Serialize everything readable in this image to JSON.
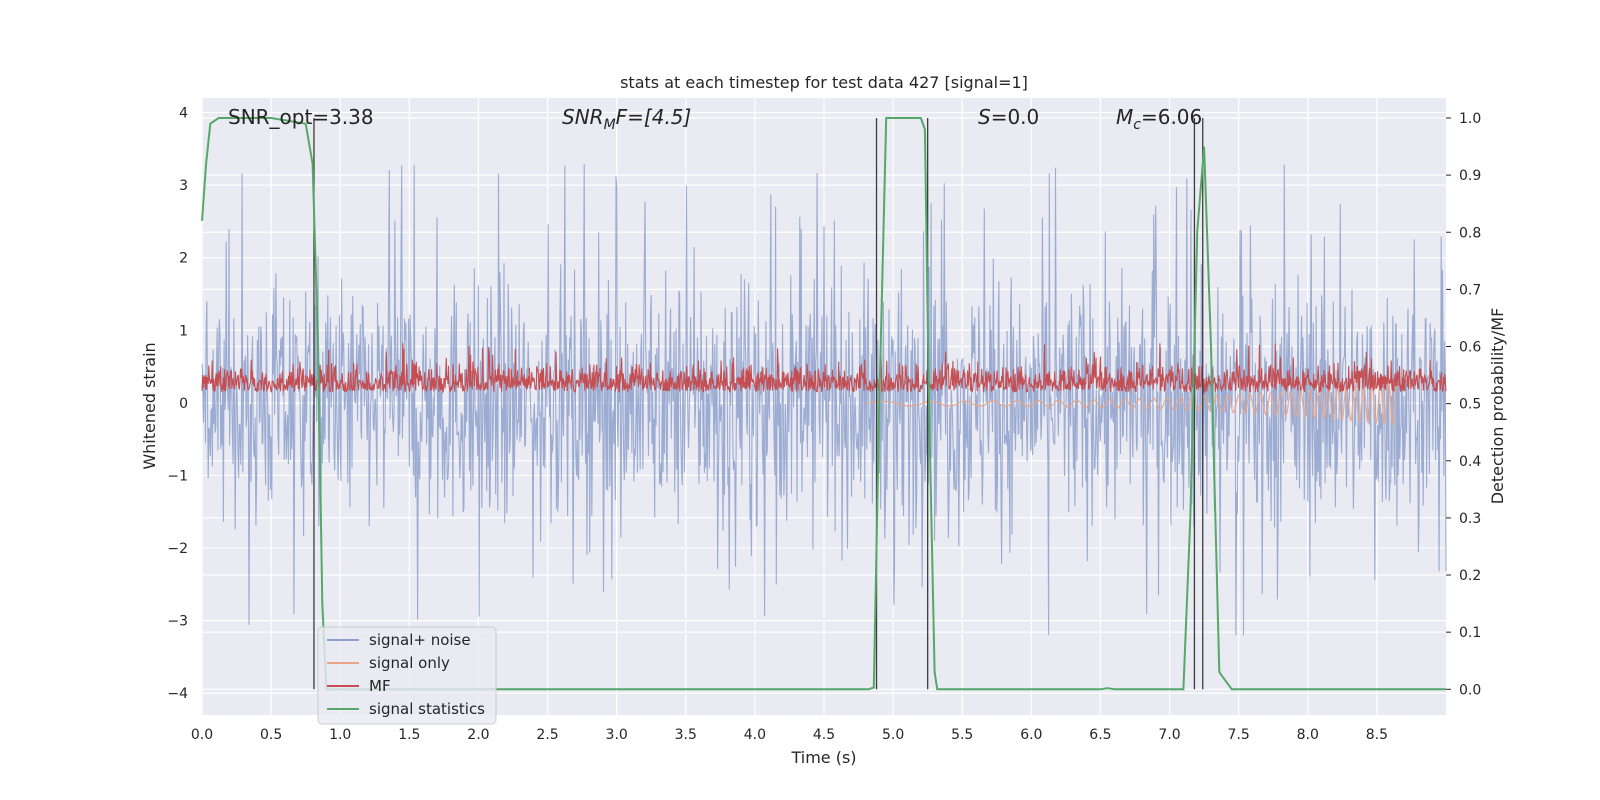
{
  "chart_data": {
    "type": "line",
    "title": "stats at each timestep for test data 427 [signal=1]",
    "xlabel": "Time (s)",
    "ylabel": "Whitened strain",
    "y2label": "Detection probability/MF",
    "xlim": [
      0,
      9.0
    ],
    "ylim": [
      -4.3,
      4.2
    ],
    "y2lim": [
      -0.045,
      1.035
    ],
    "xticks": [
      "0.0",
      "0.5",
      "1.0",
      "1.5",
      "2.0",
      "2.5",
      "3.0",
      "3.5",
      "4.0",
      "4.5",
      "5.0",
      "5.5",
      "6.0",
      "6.5",
      "7.0",
      "7.5",
      "8.0",
      "8.5"
    ],
    "xtick_values": [
      0,
      0.5,
      1.0,
      1.5,
      2.0,
      2.5,
      3.0,
      3.5,
      4.0,
      4.5,
      5.0,
      5.5,
      6.0,
      6.5,
      7.0,
      7.5,
      8.0,
      8.5
    ],
    "yticks": [
      "−4",
      "−3",
      "−2",
      "−1",
      "0",
      "1",
      "2",
      "3",
      "4"
    ],
    "ytick_values": [
      -4,
      -3,
      -2,
      -1,
      0,
      1,
      2,
      3,
      4
    ],
    "y2ticks": [
      "0.0",
      "0.1",
      "0.2",
      "0.3",
      "0.4",
      "0.5",
      "0.6",
      "0.7",
      "0.8",
      "0.9",
      "1.0"
    ],
    "y2tick_values": [
      0,
      0.1,
      0.2,
      0.3,
      0.4,
      0.5,
      0.6,
      0.7,
      0.8,
      0.9,
      1.0
    ],
    "grid": true,
    "legend_position": "lower-left",
    "annotations": {
      "snr_opt": "SNR_opt=3.38",
      "snr_mf_base": "SNR",
      "snr_mf_sub": "M",
      "snr_mf_rest": "F=[4.5]",
      "s_italic": "S",
      "s_rest": "=0.0",
      "mc_italic": "M",
      "mc_sub": "c",
      "mc_rest": "=6.06"
    },
    "detection_lines_x": [
      0.81,
      4.88,
      5.25,
      7.18,
      7.24
    ],
    "series": [
      {
        "name": "signal+ noise",
        "axis": "left",
        "color": "#8da0cb",
        "kind": "noise",
        "envelope_abs": 2.3,
        "peak_max": 3.4,
        "peak_min": -3.2
      },
      {
        "name": "signal only",
        "axis": "right",
        "color": "#e8a58a",
        "kind": "chirp",
        "x_start": 4.8,
        "x_end": 8.65,
        "end_value": 0.46
      },
      {
        "name": "MF",
        "axis": "left",
        "color": "#c44e52",
        "kind": "mf",
        "baseline": 0.15,
        "typical_high": 0.5,
        "peak": 0.83
      },
      {
        "name": "signal statistics",
        "axis": "right",
        "color": "#55a868",
        "kind": "line",
        "x": [
          0,
          0.03,
          0.06,
          0.12,
          0.5,
          0.75,
          0.8,
          0.84,
          0.87,
          0.9,
          4.82,
          4.86,
          4.9,
          4.95,
          5.2,
          5.23,
          5.26,
          5.3,
          5.32,
          6.5,
          6.55,
          6.6,
          7.1,
          7.15,
          7.2,
          7.25,
          7.3,
          7.36,
          7.45,
          9.0
        ],
        "y": [
          0.82,
          0.92,
          0.99,
          1.0,
          1.0,
          0.99,
          0.92,
          0.6,
          0.15,
          0.0,
          0.0,
          0.003,
          0.5,
          1.0,
          1.0,
          0.98,
          0.5,
          0.03,
          0.0,
          0.0,
          0.002,
          0.0,
          0.0,
          0.3,
          0.8,
          0.95,
          0.6,
          0.03,
          0.0,
          0.0
        ]
      }
    ]
  }
}
